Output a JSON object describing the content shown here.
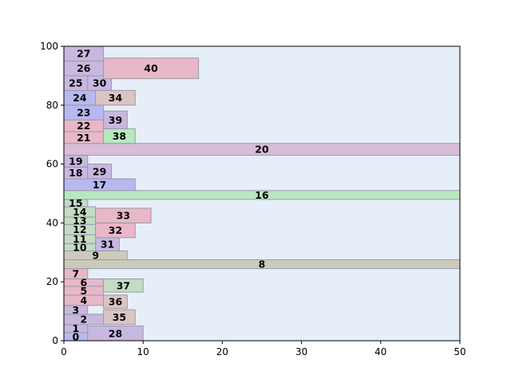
{
  "chart_data": {
    "type": "bar",
    "title": "",
    "xlabel": "",
    "ylabel": "",
    "xlim": [
      0,
      50
    ],
    "ylim": [
      0,
      100
    ],
    "xticks": [
      0,
      10,
      20,
      30,
      40,
      50
    ],
    "yticks": [
      0,
      20,
      40,
      60,
      80,
      100
    ],
    "grid": false,
    "background": "#e6eef8",
    "palette": {
      "blue": "#b8b8f0",
      "purple": "#c8b8e0",
      "pink": "#e8b8c8",
      "green": "#b8e8c0",
      "olive": "#cccbbb",
      "tan": "#dcc4c4",
      "green_mix": "#c4dcc4",
      "mauve": "#d8bcd8"
    },
    "rects": [
      {
        "label": "0",
        "x0": 0,
        "x1": 3,
        "y0": 0,
        "y1": 2.8,
        "color": "#b8b8f0"
      },
      {
        "label": "1",
        "x0": 0,
        "x1": 3,
        "y0": 2.8,
        "y1": 5.5,
        "color": "#c8b8e0"
      },
      {
        "label": "28",
        "x0": 3,
        "x1": 10,
        "y0": 0,
        "y1": 5,
        "color": "#c8b8e0"
      },
      {
        "label": "2",
        "x0": 0,
        "x1": 5,
        "y0": 5.5,
        "y1": 9,
        "color": "#c8b8e0"
      },
      {
        "label": "35",
        "x0": 5,
        "x1": 9,
        "y0": 5.5,
        "y1": 10.5,
        "color": "#dcc4c4"
      },
      {
        "label": "3",
        "x0": 0,
        "x1": 3,
        "y0": 9,
        "y1": 12,
        "color": "#c8b8e0"
      },
      {
        "label": "4",
        "x0": 0,
        "x1": 5,
        "y0": 12,
        "y1": 15.5,
        "color": "#e8b8c8"
      },
      {
        "label": "36",
        "x0": 5,
        "x1": 8,
        "y0": 11,
        "y1": 15.5,
        "color": "#dcc4c4"
      },
      {
        "label": "5",
        "x0": 0,
        "x1": 5,
        "y0": 15.5,
        "y1": 18.5,
        "color": "#e8b8c8"
      },
      {
        "label": "6",
        "x0": 0,
        "x1": 5,
        "y0": 18.5,
        "y1": 21,
        "color": "#e8b8c8"
      },
      {
        "label": "37",
        "x0": 5,
        "x1": 10,
        "y0": 16.5,
        "y1": 21,
        "color": "#c4dcc4"
      },
      {
        "label": "7",
        "x0": 0,
        "x1": 3,
        "y0": 21,
        "y1": 24.5,
        "color": "#e8b8c8"
      },
      {
        "label": "8",
        "x0": 0,
        "x1": 50,
        "y0": 24.5,
        "y1": 27.5,
        "color": "#cccbbb"
      },
      {
        "label": "9",
        "x0": 0,
        "x1": 8,
        "y0": 27.5,
        "y1": 30.5,
        "color": "#cccbbb"
      },
      {
        "label": "10",
        "x0": 0,
        "x1": 4,
        "y0": 30.5,
        "y1": 33,
        "color": "#c4dcc4"
      },
      {
        "label": "31",
        "x0": 4,
        "x1": 7,
        "y0": 30.5,
        "y1": 35,
        "color": "#c8b8e0"
      },
      {
        "label": "11",
        "x0": 0,
        "x1": 4,
        "y0": 33,
        "y1": 36,
        "color": "#c4dcc4"
      },
      {
        "label": "12",
        "x0": 0,
        "x1": 4,
        "y0": 36,
        "y1": 39.5,
        "color": "#c4dcc4"
      },
      {
        "label": "32",
        "x0": 4,
        "x1": 9,
        "y0": 35,
        "y1": 40,
        "color": "#e8b8c8"
      },
      {
        "label": "13",
        "x0": 0,
        "x1": 4,
        "y0": 39.5,
        "y1": 42,
        "color": "#c4dcc4"
      },
      {
        "label": "14",
        "x0": 0,
        "x1": 4,
        "y0": 42,
        "y1": 45.5,
        "color": "#c4dcc4"
      },
      {
        "label": "33",
        "x0": 4,
        "x1": 11,
        "y0": 40,
        "y1": 45,
        "color": "#e8b8c8"
      },
      {
        "label": "15",
        "x0": 0,
        "x1": 3,
        "y0": 45.5,
        "y1": 48,
        "color": "#c4dcc4"
      },
      {
        "label": "16",
        "x0": 0,
        "x1": 50,
        "y0": 48,
        "y1": 51,
        "color": "#b8e8c0"
      },
      {
        "label": "17",
        "x0": 0,
        "x1": 9,
        "y0": 51,
        "y1": 55,
        "color": "#b8b8f0"
      },
      {
        "label": "18",
        "x0": 0,
        "x1": 3,
        "y0": 55,
        "y1": 59,
        "color": "#c8b8e0"
      },
      {
        "label": "29",
        "x0": 3,
        "x1": 6,
        "y0": 55,
        "y1": 60,
        "color": "#c8b8e0"
      },
      {
        "label": "19",
        "x0": 0,
        "x1": 3,
        "y0": 59,
        "y1": 63,
        "color": "#c8b8e0"
      },
      {
        "label": "20",
        "x0": 0,
        "x1": 50,
        "y0": 63,
        "y1": 67,
        "color": "#d8bcd8"
      },
      {
        "label": "21",
        "x0": 0,
        "x1": 5,
        "y0": 67,
        "y1": 71,
        "color": "#e8b8c8"
      },
      {
        "label": "38",
        "x0": 5,
        "x1": 9,
        "y0": 67,
        "y1": 72,
        "color": "#b8e8c0"
      },
      {
        "label": "22",
        "x0": 0,
        "x1": 5,
        "y0": 71,
        "y1": 75,
        "color": "#e8b8c8"
      },
      {
        "label": "39",
        "x0": 5,
        "x1": 8,
        "y0": 72,
        "y1": 78,
        "color": "#c8b8e0"
      },
      {
        "label": "23",
        "x0": 0,
        "x1": 5,
        "y0": 75,
        "y1": 80,
        "color": "#b8b8f0"
      },
      {
        "label": "24",
        "x0": 0,
        "x1": 4,
        "y0": 80,
        "y1": 85,
        "color": "#b8b8f0"
      },
      {
        "label": "34",
        "x0": 4,
        "x1": 9,
        "y0": 80,
        "y1": 85,
        "color": "#dcc4c4"
      },
      {
        "label": "25",
        "x0": 0,
        "x1": 3,
        "y0": 85,
        "y1": 90,
        "color": "#c8b8e0"
      },
      {
        "label": "30",
        "x0": 3,
        "x1": 6,
        "y0": 85,
        "y1": 90,
        "color": "#c8b8e0"
      },
      {
        "label": "26",
        "x0": 0,
        "x1": 5,
        "y0": 90,
        "y1": 95,
        "color": "#c8b8e0"
      },
      {
        "label": "40",
        "x0": 5,
        "x1": 17,
        "y0": 89,
        "y1": 96,
        "color": "#e8b8c8"
      },
      {
        "label": "27",
        "x0": 0,
        "x1": 5,
        "y0": 95,
        "y1": 100,
        "color": "#c8b8e0"
      }
    ]
  }
}
